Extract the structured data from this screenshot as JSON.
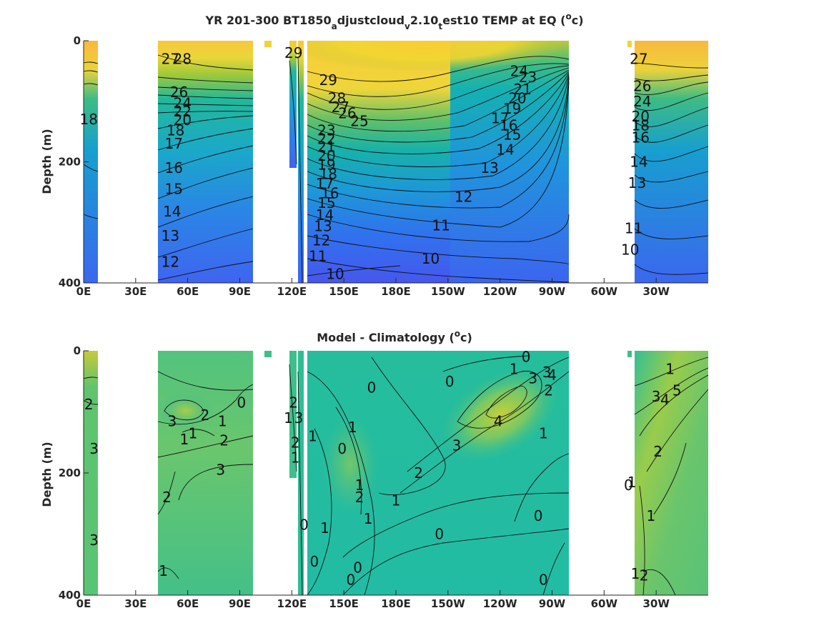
{
  "chart_data": [
    {
      "type": "heatmap",
      "title_main": "YR 201-300 BT1850",
      "title_sub1": "a",
      "title_mid": "djustcloud",
      "title_sub2": "v",
      "title_mid2": "2.10",
      "title_sub3": "t",
      "title_end": "est10 TEMP at EQ (",
      "title_sup": "o",
      "title_close": "c)",
      "ylabel": "Depth (m)",
      "xlabel": "",
      "x_ticks": [
        "0E",
        "30E",
        "60E",
        "90E",
        "120E",
        "150E",
        "180E",
        "150W",
        "120W",
        "90W",
        "60W",
        "30W"
      ],
      "y_ticks": [
        "0",
        "200",
        "400"
      ],
      "ylim": [
        400,
        0
      ],
      "colormap": "parula",
      "ocean_segments_lon": [
        [
          0,
          8
        ],
        [
          43,
          97
        ],
        [
          122,
          125
        ],
        [
          127,
          281
        ],
        [
          313,
          360
        ]
      ],
      "contour_labels": [
        {
          "text": "28",
          "lon": 57,
          "depth": 30
        },
        {
          "text": "27",
          "lon": 50,
          "depth": 30
        },
        {
          "text": "26",
          "lon": 55,
          "depth": 85
        },
        {
          "text": "24",
          "lon": 57,
          "depth": 103
        },
        {
          "text": "22",
          "lon": 57,
          "depth": 117
        },
        {
          "text": "20",
          "lon": 57,
          "depth": 131
        },
        {
          "text": "18",
          "lon": 53,
          "depth": 148
        },
        {
          "text": "17",
          "lon": 52,
          "depth": 170
        },
        {
          "text": "16",
          "lon": 52,
          "depth": 210
        },
        {
          "text": "15",
          "lon": 52,
          "depth": 245
        },
        {
          "text": "14",
          "lon": 51,
          "depth": 282
        },
        {
          "text": "13",
          "lon": 50,
          "depth": 322
        },
        {
          "text": "12",
          "lon": 50,
          "depth": 365
        },
        {
          "text": "18",
          "lon": 3,
          "depth": 130
        },
        {
          "text": "29",
          "lon": 121,
          "depth": 20
        },
        {
          "text": "29",
          "lon": 141,
          "depth": 65
        },
        {
          "text": "28",
          "lon": 146,
          "depth": 95
        },
        {
          "text": "27",
          "lon": 148,
          "depth": 110
        },
        {
          "text": "26",
          "lon": 152,
          "depth": 120
        },
        {
          "text": "25",
          "lon": 159,
          "depth": 133
        },
        {
          "text": "23",
          "lon": 140,
          "depth": 148
        },
        {
          "text": "22",
          "lon": 140,
          "depth": 162
        },
        {
          "text": "21",
          "lon": 140,
          "depth": 175
        },
        {
          "text": "20",
          "lon": 140,
          "depth": 190
        },
        {
          "text": "19",
          "lon": 140,
          "depth": 205
        },
        {
          "text": "18",
          "lon": 141,
          "depth": 220
        },
        {
          "text": "17",
          "lon": 139,
          "depth": 236
        },
        {
          "text": "16",
          "lon": 142,
          "depth": 252
        },
        {
          "text": "15",
          "lon": 140,
          "depth": 268
        },
        {
          "text": "14",
          "lon": 139,
          "depth": 288
        },
        {
          "text": "13",
          "lon": 138,
          "depth": 306
        },
        {
          "text": "12",
          "lon": 137,
          "depth": 330
        },
        {
          "text": "11",
          "lon": 135,
          "depth": 356
        },
        {
          "text": "10",
          "lon": 145,
          "depth": 385
        },
        {
          "text": "10",
          "lon": 200,
          "depth": 360
        },
        {
          "text": "11",
          "lon": 206,
          "depth": 305
        },
        {
          "text": "12",
          "lon": 219,
          "depth": 258
        },
        {
          "text": "13",
          "lon": 234,
          "depth": 210
        },
        {
          "text": "14",
          "lon": 243,
          "depth": 180
        },
        {
          "text": "15",
          "lon": 247,
          "depth": 155
        },
        {
          "text": "16",
          "lon": 245,
          "depth": 140
        },
        {
          "text": "17",
          "lon": 240,
          "depth": 128
        },
        {
          "text": "24",
          "lon": 251,
          "depth": 50
        },
        {
          "text": "23",
          "lon": 256,
          "depth": 60
        },
        {
          "text": "21",
          "lon": 253,
          "depth": 80
        },
        {
          "text": "20",
          "lon": 250,
          "depth": 95
        },
        {
          "text": "19",
          "lon": 247,
          "depth": 112
        },
        {
          "text": "27",
          "lon": 320,
          "depth": 30
        },
        {
          "text": "26",
          "lon": 322,
          "depth": 75
        },
        {
          "text": "24",
          "lon": 322,
          "depth": 100
        },
        {
          "text": "20",
          "lon": 321,
          "depth": 125
        },
        {
          "text": "18",
          "lon": 321,
          "depth": 140
        },
        {
          "text": "16",
          "lon": 321,
          "depth": 160
        },
        {
          "text": "14",
          "lon": 320,
          "depth": 200
        },
        {
          "text": "13",
          "lon": 319,
          "depth": 235
        },
        {
          "text": "11",
          "lon": 317,
          "depth": 310
        },
        {
          "text": "10",
          "lon": 315,
          "depth": 345
        }
      ]
    },
    {
      "type": "heatmap",
      "title_main": "Model - Climatology (",
      "title_sup": "o",
      "title_close": "c)",
      "ylabel": "Depth (m)",
      "xlabel": "",
      "x_ticks": [
        "0E",
        "30E",
        "60E",
        "90E",
        "120E",
        "150E",
        "180E",
        "150W",
        "120W",
        "90W",
        "60W",
        "30W"
      ],
      "y_ticks": [
        "0",
        "200",
        "400"
      ],
      "ylim": [
        400,
        0
      ],
      "colormap": "parula",
      "ocean_segments_lon": [
        [
          0,
          8
        ],
        [
          43,
          97
        ],
        [
          122,
          125
        ],
        [
          127,
          281
        ],
        [
          313,
          360
        ]
      ],
      "contour_labels": [
        {
          "text": "2",
          "lon": 3,
          "depth": 88
        },
        {
          "text": "3",
          "lon": 6,
          "depth": 160
        },
        {
          "text": "3",
          "lon": 6,
          "depth": 310
        },
        {
          "text": "3",
          "lon": 51,
          "depth": 115
        },
        {
          "text": "2",
          "lon": 70,
          "depth": 105
        },
        {
          "text": "1",
          "lon": 80,
          "depth": 115
        },
        {
          "text": "0",
          "lon": 91,
          "depth": 85
        },
        {
          "text": "1",
          "lon": 58,
          "depth": 145
        },
        {
          "text": "1",
          "lon": 63,
          "depth": 135
        },
        {
          "text": "2",
          "lon": 81,
          "depth": 147
        },
        {
          "text": "3",
          "lon": 79,
          "depth": 195
        },
        {
          "text": "2",
          "lon": 48,
          "depth": 240
        },
        {
          "text": "1",
          "lon": 46,
          "depth": 360
        },
        {
          "text": "1",
          "lon": 118,
          "depth": 110
        },
        {
          "text": "2",
          "lon": 121,
          "depth": 85
        },
        {
          "text": "3",
          "lon": 124,
          "depth": 110
        },
        {
          "text": "2",
          "lon": 122,
          "depth": 150
        },
        {
          "text": "1",
          "lon": 122,
          "depth": 175
        },
        {
          "text": "1",
          "lon": 132,
          "depth": 140
        },
        {
          "text": "0",
          "lon": 127,
          "depth": 285
        },
        {
          "text": "0",
          "lon": 166,
          "depth": 60
        },
        {
          "text": "1",
          "lon": 155,
          "depth": 125
        },
        {
          "text": "0",
          "lon": 149,
          "depth": 160
        },
        {
          "text": "1",
          "lon": 139,
          "depth": 290
        },
        {
          "text": "0",
          "lon": 133,
          "depth": 345
        },
        {
          "text": "1",
          "lon": 159,
          "depth": 220
        },
        {
          "text": "2",
          "lon": 159,
          "depth": 240
        },
        {
          "text": "1",
          "lon": 164,
          "depth": 275
        },
        {
          "text": "1",
          "lon": 180,
          "depth": 245
        },
        {
          "text": "0",
          "lon": 205,
          "depth": 300
        },
        {
          "text": "0",
          "lon": 158,
          "depth": 355
        },
        {
          "text": "0",
          "lon": 154,
          "depth": 375
        },
        {
          "text": "2",
          "lon": 193,
          "depth": 200
        },
        {
          "text": "3",
          "lon": 215,
          "depth": 155
        },
        {
          "text": "4",
          "lon": 239,
          "depth": 115
        },
        {
          "text": "1",
          "lon": 265,
          "depth": 135
        },
        {
          "text": "0",
          "lon": 211,
          "depth": 50
        },
        {
          "text": "1",
          "lon": 248,
          "depth": 30
        },
        {
          "text": "3",
          "lon": 259,
          "depth": 45
        },
        {
          "text": "3",
          "lon": 267,
          "depth": 35
        },
        {
          "text": "4",
          "lon": 270,
          "depth": 40
        },
        {
          "text": "2",
          "lon": 268,
          "depth": 65
        },
        {
          "text": "0",
          "lon": 255,
          "depth": 10
        },
        {
          "text": "0",
          "lon": 262,
          "depth": 270
        },
        {
          "text": "0",
          "lon": 265,
          "depth": 375
        },
        {
          "text": "1",
          "lon": 338,
          "depth": 30
        },
        {
          "text": "3",
          "lon": 330,
          "depth": 75
        },
        {
          "text": "4",
          "lon": 335,
          "depth": 80
        },
        {
          "text": "5",
          "lon": 342,
          "depth": 65
        },
        {
          "text": "2",
          "lon": 331,
          "depth": 165
        },
        {
          "text": "1",
          "lon": 327,
          "depth": 270
        },
        {
          "text": "0",
          "lon": 314,
          "depth": 220
        },
        {
          "text": "1",
          "lon": 316,
          "depth": 215
        },
        {
          "text": "1",
          "lon": 318,
          "depth": 365
        },
        {
          "text": "2",
          "lon": 323,
          "depth": 368
        }
      ]
    }
  ]
}
